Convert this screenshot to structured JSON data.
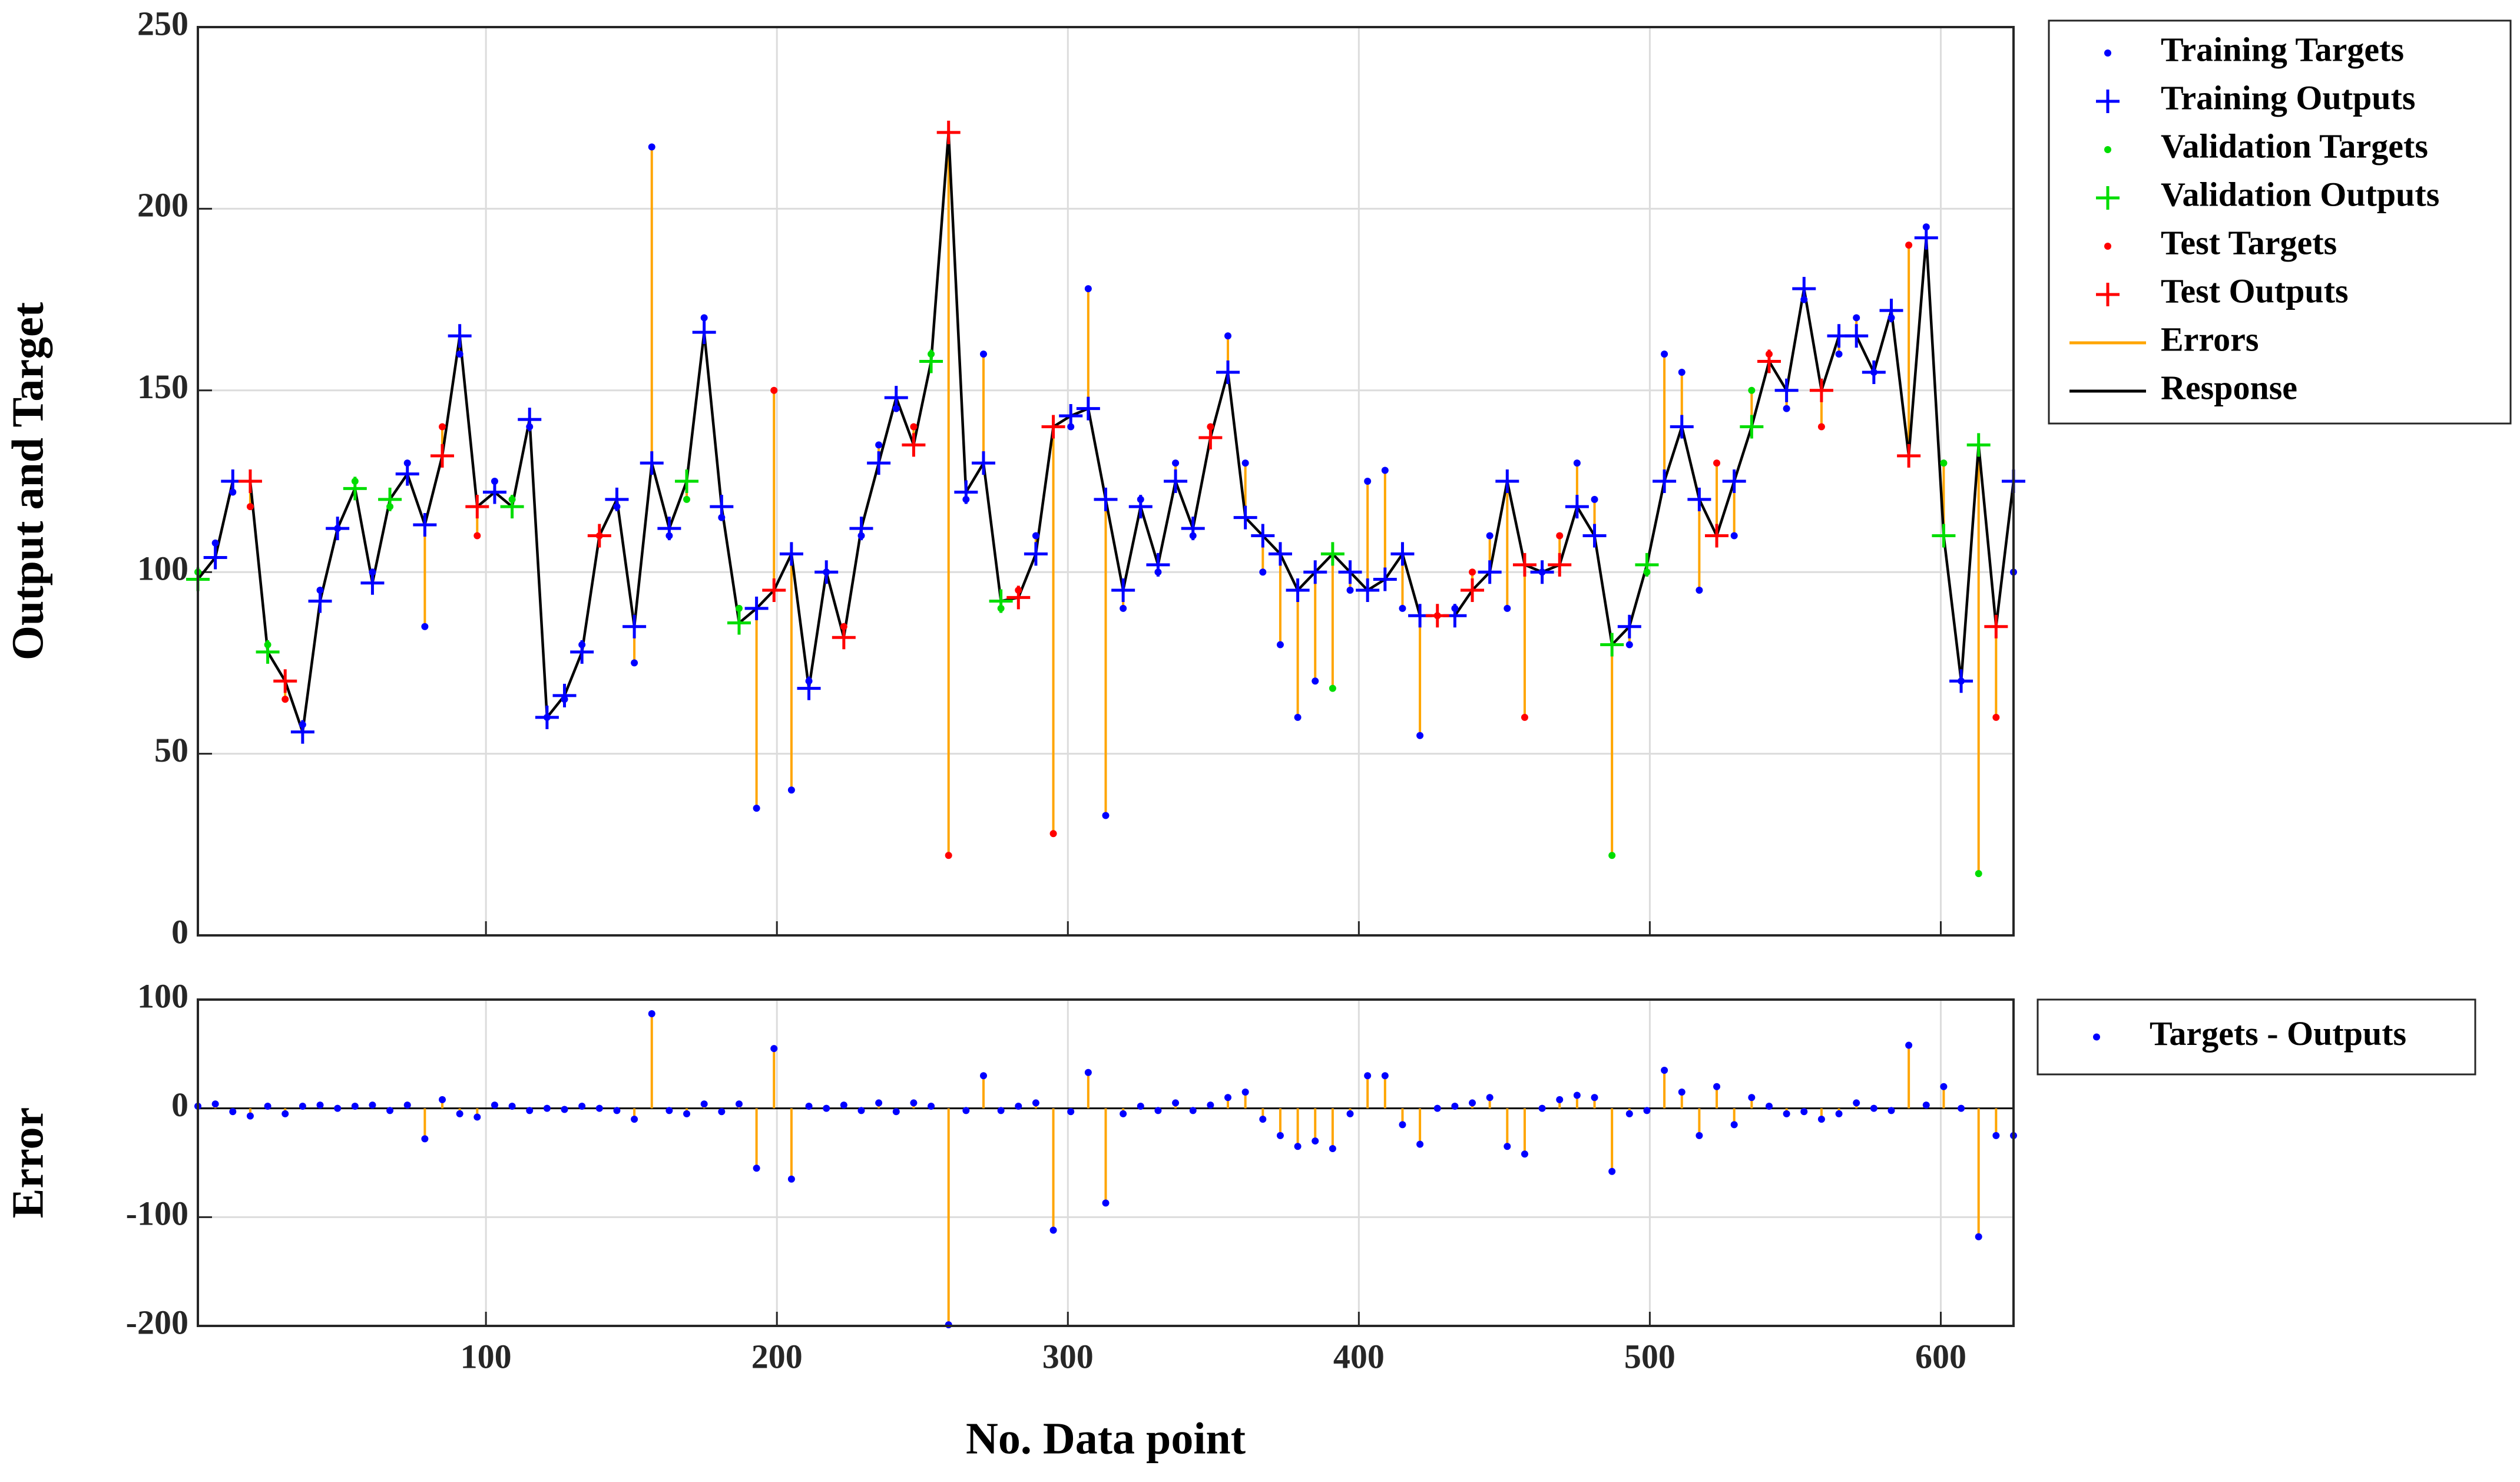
{
  "chart_data": [
    {
      "type": "line",
      "ylabel": "Output and Target",
      "xlim": [
        1,
        625
      ],
      "ylim": [
        0,
        250
      ],
      "xticks": [
        100,
        200,
        300,
        400,
        500,
        600
      ],
      "xticklabels": false,
      "yticks": [
        0,
        50,
        100,
        150,
        200,
        250
      ],
      "grid": true,
      "legend": "outside-right",
      "series": [
        {
          "name": "Training Targets",
          "color": "#0000ff",
          "marker": "dot",
          "x": [
            7,
            13,
            37,
            43,
            49,
            61,
            73,
            79,
            91,
            103,
            115,
            121,
            127,
            133,
            145,
            151,
            157,
            163,
            175,
            181,
            193,
            205,
            211,
            217,
            229,
            235,
            241,
            265,
            271,
            289,
            301,
            307,
            313,
            319,
            325,
            331,
            337,
            343,
            355,
            361,
            367,
            373,
            379,
            385,
            397,
            403,
            409,
            415,
            421,
            433,
            445,
            451,
            463,
            475,
            481,
            493,
            505,
            511,
            517,
            529,
            547,
            553,
            565,
            571,
            577,
            583,
            595,
            607,
            625
          ],
          "values": [
            108,
            122,
            58,
            95,
            112,
            100,
            130,
            85,
            160,
            125,
            140,
            60,
            65,
            80,
            118,
            75,
            217,
            110,
            170,
            115,
            35,
            40,
            70,
            100,
            110,
            135,
            145,
            120,
            160,
            110,
            140,
            178,
            33,
            90,
            120,
            100,
            130,
            110,
            165,
            130,
            100,
            80,
            60,
            70,
            95,
            125,
            128,
            90,
            55,
            90,
            110,
            90,
            100,
            130,
            120,
            80,
            160,
            155,
            95,
            110,
            145,
            175,
            160,
            170,
            155,
            170,
            195,
            70,
            100
          ]
        },
        {
          "name": "Training Outputs",
          "color": "#0000ff",
          "marker": "plus",
          "x": [
            7,
            13,
            37,
            43,
            49,
            61,
            73,
            79,
            91,
            103,
            115,
            121,
            127,
            133,
            145,
            151,
            157,
            163,
            175,
            181,
            193,
            205,
            211,
            217,
            229,
            235,
            241,
            265,
            271,
            289,
            301,
            307,
            313,
            319,
            325,
            331,
            337,
            343,
            355,
            361,
            367,
            373,
            379,
            385,
            397,
            403,
            409,
            415,
            421,
            433,
            445,
            451,
            463,
            475,
            481,
            493,
            505,
            511,
            517,
            529,
            547,
            553,
            565,
            571,
            577,
            583,
            595,
            607,
            625
          ],
          "values": [
            104,
            125,
            56,
            92,
            112,
            97,
            127,
            113,
            165,
            122,
            142,
            60,
            66,
            78,
            120,
            85,
            130,
            112,
            166,
            118,
            90,
            105,
            68,
            100,
            112,
            130,
            148,
            122,
            130,
            105,
            143,
            145,
            120,
            95,
            118,
            102,
            125,
            112,
            155,
            115,
            110,
            105,
            95,
            100,
            100,
            95,
            98,
            105,
            88,
            88,
            100,
            125,
            100,
            118,
            110,
            85,
            125,
            140,
            120,
            125,
            150,
            178,
            165,
            165,
            155,
            172,
            192,
            70,
            125
          ]
        },
        {
          "name": "Validation Targets",
          "color": "#00dd00",
          "marker": "dot",
          "x": [
            1,
            25,
            55,
            67,
            109,
            169,
            187,
            253,
            277,
            391,
            487,
            499,
            535,
            601,
            613
          ],
          "values": [
            100,
            80,
            125,
            118,
            120,
            120,
            90,
            160,
            90,
            68,
            22,
            100,
            150,
            130,
            17
          ]
        },
        {
          "name": "Validation Outputs",
          "color": "#00dd00",
          "marker": "plus",
          "x": [
            1,
            25,
            55,
            67,
            109,
            169,
            187,
            253,
            277,
            391,
            487,
            499,
            535,
            601,
            613
          ],
          "values": [
            98,
            78,
            123,
            120,
            118,
            125,
            86,
            158,
            92,
            105,
            80,
            102,
            140,
            110,
            135
          ]
        },
        {
          "name": "Test Targets",
          "color": "#ff0000",
          "marker": "dot",
          "x": [
            19,
            31,
            85,
            97,
            139,
            199,
            223,
            247,
            259,
            283,
            295,
            349,
            427,
            439,
            457,
            469,
            523,
            541,
            559,
            589,
            619
          ],
          "values": [
            118,
            65,
            140,
            110,
            110,
            150,
            85,
            140,
            22,
            95,
            28,
            140,
            88,
            100,
            60,
            110,
            130,
            160,
            140,
            190,
            60
          ]
        },
        {
          "name": "Test Outputs",
          "color": "#ff0000",
          "marker": "plus",
          "x": [
            19,
            31,
            85,
            97,
            139,
            199,
            223,
            247,
            259,
            283,
            295,
            349,
            427,
            439,
            457,
            469,
            523,
            541,
            559,
            589,
            619
          ],
          "values": [
            125,
            70,
            132,
            118,
            110,
            95,
            82,
            135,
            221,
            93,
            140,
            137,
            88,
            95,
            102,
            102,
            110,
            158,
            150,
            132,
            85
          ]
        },
        {
          "name": "Errors",
          "color": "#ffa500",
          "style": "stem"
        },
        {
          "name": "Response",
          "color": "#000000",
          "style": "line",
          "x": [
            1,
            7,
            13,
            19,
            25,
            31,
            37,
            43,
            49,
            55,
            61,
            67,
            73,
            79,
            85,
            91,
            97,
            103,
            109,
            115,
            121,
            127,
            133,
            139,
            145,
            151,
            157,
            163,
            169,
            175,
            181,
            187,
            193,
            199,
            205,
            211,
            217,
            223,
            229,
            235,
            241,
            247,
            253,
            259,
            265,
            271,
            277,
            283,
            289,
            295,
            301,
            307,
            313,
            319,
            325,
            331,
            337,
            343,
            349,
            355,
            361,
            367,
            373,
            379,
            385,
            391,
            397,
            403,
            409,
            415,
            421,
            427,
            433,
            439,
            445,
            451,
            457,
            463,
            469,
            475,
            481,
            487,
            493,
            499,
            505,
            511,
            517,
            523,
            529,
            535,
            541,
            547,
            553,
            559,
            565,
            571,
            577,
            583,
            589,
            595,
            601,
            607,
            613,
            619,
            625
          ],
          "values": [
            98,
            104,
            125,
            125,
            78,
            70,
            56,
            92,
            112,
            123,
            97,
            120,
            127,
            113,
            132,
            165,
            118,
            122,
            118,
            142,
            60,
            66,
            78,
            110,
            120,
            85,
            130,
            112,
            125,
            166,
            118,
            86,
            90,
            95,
            105,
            68,
            100,
            82,
            112,
            130,
            148,
            135,
            158,
            221,
            122,
            130,
            92,
            93,
            105,
            140,
            143,
            145,
            120,
            95,
            118,
            102,
            125,
            112,
            137,
            155,
            115,
            110,
            105,
            95,
            100,
            105,
            100,
            95,
            98,
            105,
            88,
            88,
            88,
            95,
            100,
            125,
            102,
            100,
            102,
            118,
            110,
            80,
            85,
            102,
            125,
            140,
            120,
            110,
            125,
            140,
            158,
            150,
            178,
            150,
            165,
            165,
            155,
            172,
            132,
            192,
            110,
            70,
            135,
            85,
            125
          ]
        }
      ]
    },
    {
      "type": "stem",
      "ylabel": "Error",
      "xlabel": "No. Data point",
      "xlim": [
        1,
        625
      ],
      "ylim": [
        -200,
        100
      ],
      "xticks": [
        100,
        200,
        300,
        400,
        500,
        600
      ],
      "xticklabels": true,
      "yticks": [
        -200,
        -100,
        0,
        100
      ],
      "grid": true,
      "legend": "outside-right",
      "series": [
        {
          "name": "Targets - Outputs",
          "color": "#0000ff",
          "marker": "dot",
          "stem_color": "#ffa500",
          "x": [
            1,
            7,
            13,
            19,
            25,
            31,
            37,
            43,
            49,
            55,
            61,
            67,
            73,
            79,
            85,
            91,
            97,
            103,
            109,
            115,
            121,
            127,
            133,
            139,
            145,
            151,
            157,
            163,
            169,
            175,
            181,
            187,
            193,
            199,
            205,
            211,
            217,
            223,
            229,
            235,
            241,
            247,
            253,
            259,
            265,
            271,
            277,
            283,
            289,
            295,
            301,
            307,
            313,
            319,
            325,
            331,
            337,
            343,
            349,
            355,
            361,
            367,
            373,
            379,
            385,
            391,
            397,
            403,
            409,
            415,
            421,
            427,
            433,
            439,
            445,
            451,
            457,
            463,
            469,
            475,
            481,
            487,
            493,
            499,
            505,
            511,
            517,
            523,
            529,
            535,
            541,
            547,
            553,
            559,
            565,
            571,
            577,
            583,
            589,
            595,
            601,
            607,
            613,
            619,
            625
          ],
          "values": [
            2,
            4,
            -3,
            -7,
            2,
            -5,
            2,
            3,
            0,
            2,
            3,
            -2,
            3,
            -28,
            8,
            -5,
            -8,
            3,
            2,
            -2,
            0,
            -1,
            2,
            0,
            -2,
            -10,
            87,
            -2,
            -5,
            4,
            -3,
            4,
            -55,
            55,
            -65,
            2,
            0,
            3,
            -2,
            5,
            -3,
            5,
            2,
            -199,
            -2,
            30,
            -2,
            2,
            5,
            -112,
            -3,
            33,
            -87,
            -5,
            2,
            -2,
            5,
            -2,
            3,
            10,
            15,
            -10,
            -25,
            -35,
            -30,
            -37,
            -5,
            30,
            30,
            -15,
            -33,
            0,
            2,
            5,
            10,
            -35,
            -42,
            0,
            8,
            12,
            10,
            -58,
            -5,
            -2,
            35,
            15,
            -25,
            20,
            -15,
            10,
            2,
            -5,
            -3,
            -10,
            -5,
            5,
            0,
            -2,
            58,
            3,
            20,
            0,
            -118,
            -25,
            -25
          ]
        }
      ]
    }
  ]
}
